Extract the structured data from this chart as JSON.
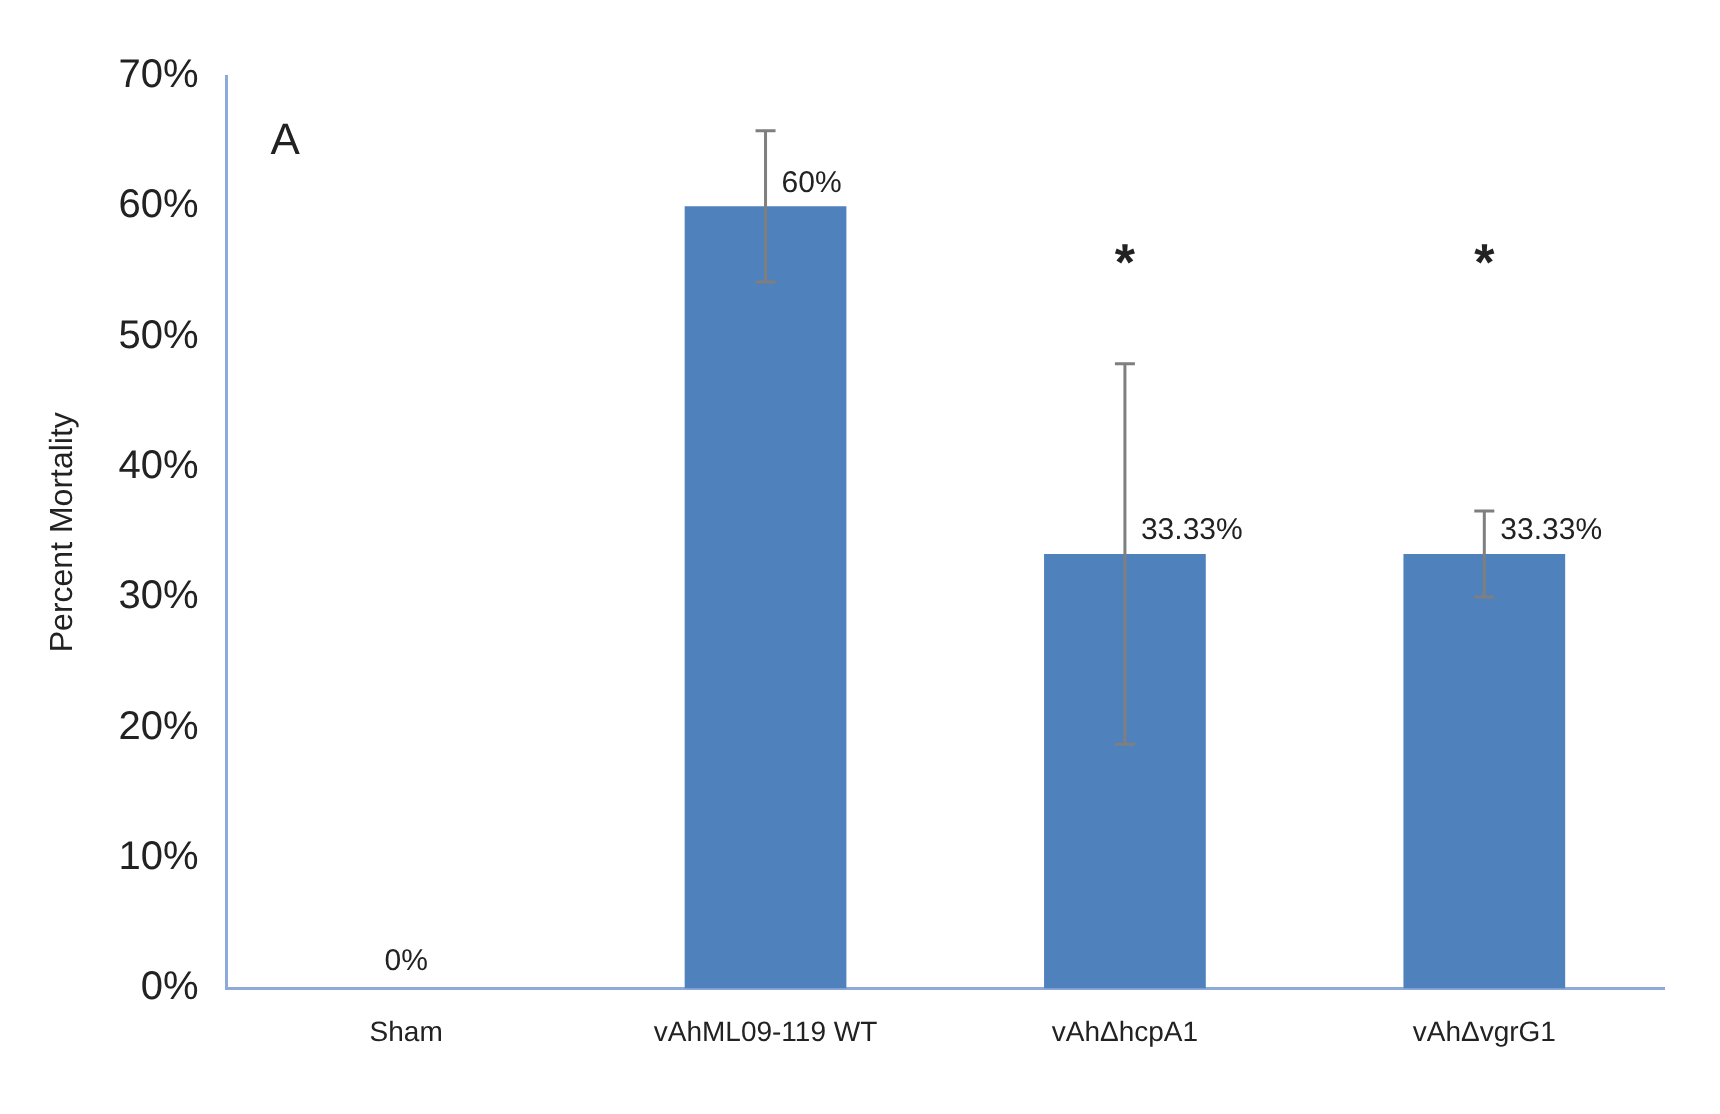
{
  "chart_data": {
    "type": "bar",
    "ylabel": "Percent Mortality",
    "categories": [
      "Sham",
      "vAhML09-119 WT",
      "vAhΔhcpA1",
      "vAhΔvgrG1"
    ],
    "values": [
      0,
      60,
      33.33,
      33.33
    ],
    "color": "#4f81bd",
    "errors": [
      null,
      5.8,
      14.6,
      3.3
    ],
    "value_labels": [
      "0%",
      "60%",
      "33.33%",
      "33.33%"
    ],
    "annotations": [
      "A",
      "*",
      "*"
    ],
    "ylim": [
      0,
      70
    ],
    "yticks": [
      {
        "value": 0,
        "label": "0%"
      },
      {
        "value": 10,
        "label": "10%"
      },
      {
        "value": 20,
        "label": "20%"
      },
      {
        "value": 30,
        "label": "30%"
      },
      {
        "value": 40,
        "label": "40%"
      },
      {
        "value": 50,
        "label": "50%"
      },
      {
        "value": 60,
        "label": "60%"
      },
      {
        "value": 70,
        "label": "70%"
      }
    ],
    "grid": false,
    "legend": false
  }
}
